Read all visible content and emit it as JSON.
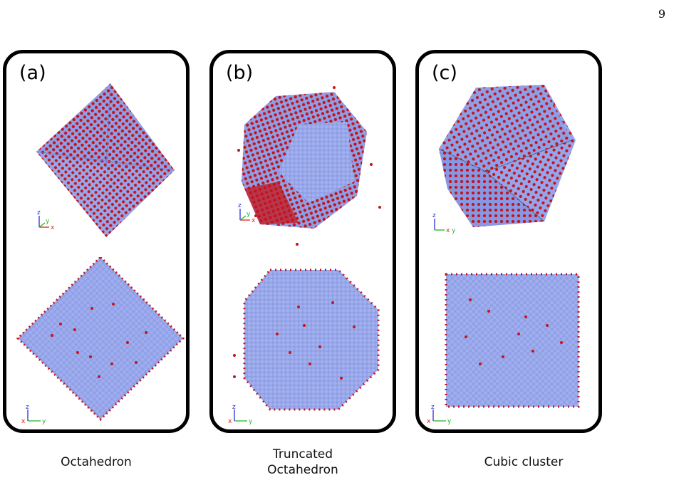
{
  "page_number": "9",
  "panels": [
    {
      "label": "(a)",
      "caption_lines": [
        "Octahedron"
      ],
      "axes_top": {
        "z": "z",
        "y": "y",
        "x": "x"
      },
      "axes_bottom": {
        "z": "z",
        "x": "x",
        "y": "y"
      }
    },
    {
      "label": "(b)",
      "caption_lines": [
        "Truncated",
        "Octahedron"
      ],
      "axes_top": {
        "z": "z",
        "y": "y",
        "x": "x"
      },
      "axes_bottom": {
        "z": "z",
        "x": "x",
        "y": "y"
      }
    },
    {
      "label": "(c)",
      "caption_lines": [
        "Cubic cluster"
      ],
      "axes_top": {
        "z": "z",
        "x": "x",
        "y": "y"
      },
      "axes_bottom": {
        "z": "z",
        "x": "x",
        "y": "y"
      }
    }
  ],
  "colors": {
    "atom_blue": "#8f9fe6",
    "atom_red": "#c4141b",
    "frame": "#000000",
    "axis_z": "#2b2bd6",
    "axis_y": "#1fb31f",
    "axis_x": "#e02020"
  }
}
